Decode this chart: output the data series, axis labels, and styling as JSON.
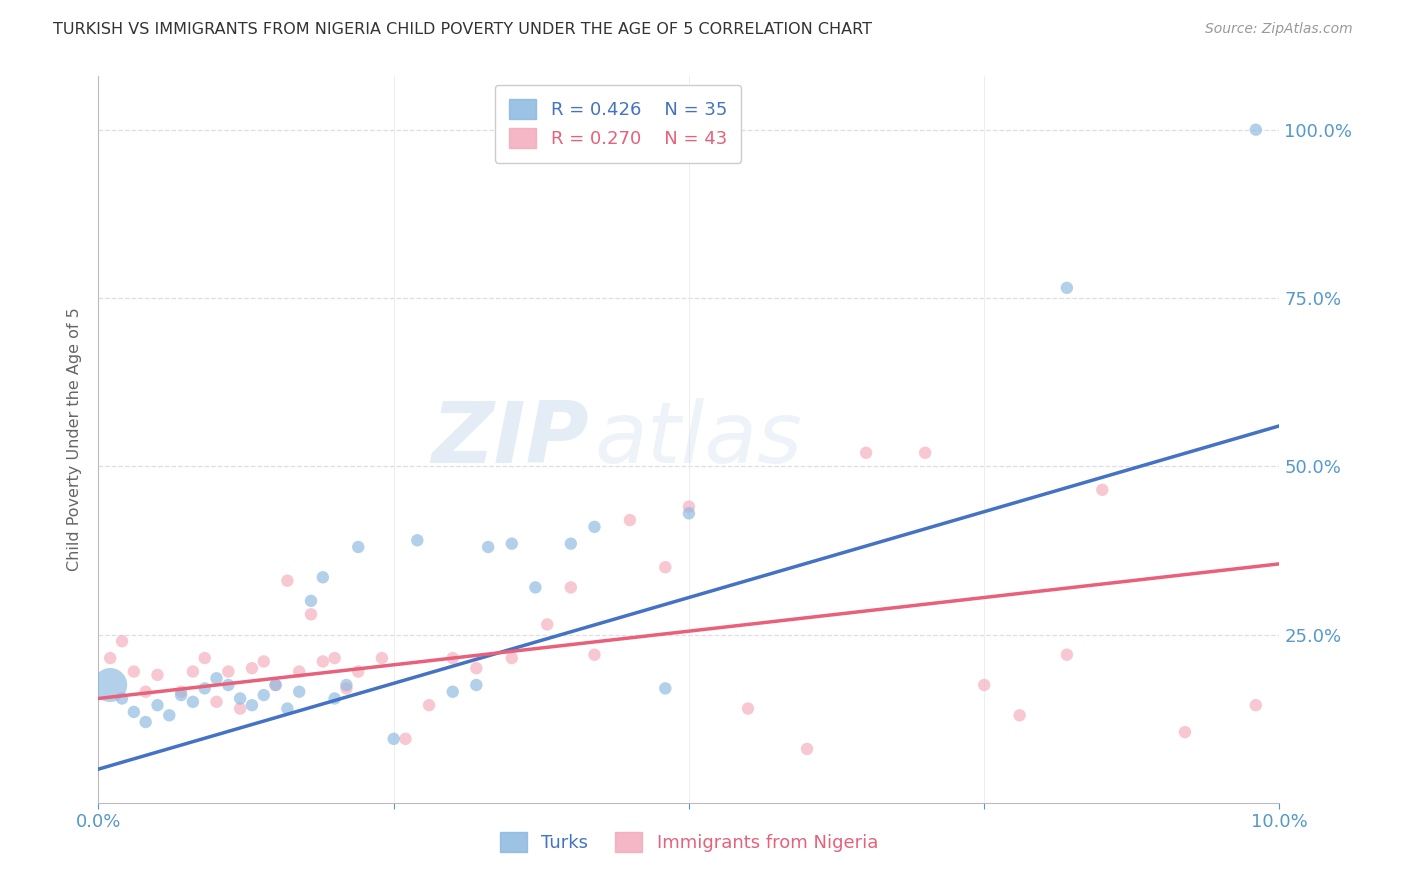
{
  "title": "TURKISH VS IMMIGRANTS FROM NIGERIA CHILD POVERTY UNDER THE AGE OF 5 CORRELATION CHART",
  "source": "Source: ZipAtlas.com",
  "ylabel": "Child Poverty Under the Age of 5",
  "legend_blue_r": "R = 0.426",
  "legend_blue_n": "N = 35",
  "legend_pink_r": "R = 0.270",
  "legend_pink_n": "N = 43",
  "blue_color": "#8BB8E0",
  "pink_color": "#F4AABB",
  "blue_line_color": "#4472C4",
  "pink_line_color": "#E8607A",
  "watermark_zip": "ZIP",
  "watermark_atlas": "atlas",
  "turks_x": [
    0.001,
    0.002,
    0.003,
    0.004,
    0.005,
    0.006,
    0.007,
    0.008,
    0.009,
    0.01,
    0.011,
    0.012,
    0.013,
    0.014,
    0.015,
    0.016,
    0.017,
    0.018,
    0.019,
    0.02,
    0.021,
    0.022,
    0.025,
    0.027,
    0.03,
    0.032,
    0.033,
    0.035,
    0.037,
    0.04,
    0.042,
    0.048,
    0.05,
    0.082,
    0.098
  ],
  "turks_y": [
    0.175,
    0.155,
    0.135,
    0.12,
    0.145,
    0.13,
    0.16,
    0.15,
    0.17,
    0.185,
    0.175,
    0.155,
    0.145,
    0.16,
    0.175,
    0.14,
    0.165,
    0.3,
    0.335,
    0.155,
    0.175,
    0.38,
    0.095,
    0.39,
    0.165,
    0.175,
    0.38,
    0.385,
    0.32,
    0.385,
    0.41,
    0.17,
    0.43,
    0.765,
    1.0
  ],
  "turks_sizes": [
    600,
    80,
    80,
    80,
    80,
    80,
    80,
    80,
    80,
    80,
    80,
    80,
    80,
    80,
    80,
    80,
    80,
    80,
    80,
    80,
    80,
    80,
    80,
    80,
    80,
    80,
    80,
    80,
    80,
    80,
    80,
    80,
    80,
    80,
    80
  ],
  "nigeria_x": [
    0.001,
    0.002,
    0.003,
    0.004,
    0.005,
    0.007,
    0.008,
    0.009,
    0.01,
    0.011,
    0.012,
    0.013,
    0.014,
    0.015,
    0.016,
    0.017,
    0.018,
    0.019,
    0.02,
    0.021,
    0.022,
    0.024,
    0.026,
    0.028,
    0.03,
    0.032,
    0.035,
    0.038,
    0.04,
    0.042,
    0.045,
    0.048,
    0.05,
    0.055,
    0.06,
    0.065,
    0.07,
    0.075,
    0.078,
    0.082,
    0.085,
    0.092,
    0.098
  ],
  "nigeria_y": [
    0.215,
    0.24,
    0.195,
    0.165,
    0.19,
    0.165,
    0.195,
    0.215,
    0.15,
    0.195,
    0.14,
    0.2,
    0.21,
    0.175,
    0.33,
    0.195,
    0.28,
    0.21,
    0.215,
    0.17,
    0.195,
    0.215,
    0.095,
    0.145,
    0.215,
    0.2,
    0.215,
    0.265,
    0.32,
    0.22,
    0.42,
    0.35,
    0.44,
    0.14,
    0.08,
    0.52,
    0.52,
    0.175,
    0.13,
    0.22,
    0.465,
    0.105,
    0.145
  ],
  "nigeria_sizes": [
    80,
    80,
    80,
    80,
    80,
    80,
    80,
    80,
    80,
    80,
    80,
    80,
    80,
    80,
    80,
    80,
    80,
    80,
    80,
    80,
    80,
    80,
    80,
    80,
    80,
    80,
    80,
    80,
    80,
    80,
    80,
    80,
    80,
    80,
    80,
    80,
    80,
    80,
    80,
    80,
    80,
    80,
    80
  ],
  "xlim": [
    0.0,
    0.1
  ],
  "ylim": [
    0.0,
    1.08
  ],
  "blue_line_x": [
    0.0,
    0.1
  ],
  "blue_line_y": [
    0.05,
    0.56
  ],
  "pink_line_x": [
    0.0,
    0.1
  ],
  "pink_line_y": [
    0.155,
    0.355
  ],
  "grid_color": "#DEDEE8",
  "background_color": "#FFFFFF",
  "axis_color": "#5599CC",
  "yticks_right": [
    0.25,
    0.5,
    0.75,
    1.0
  ],
  "ytick_labels_right": [
    "25.0%",
    "50.0%",
    "75.0%",
    "100.0%"
  ],
  "xtick_positions": [
    0.0,
    0.025,
    0.05,
    0.075,
    0.1
  ],
  "xtick_labels": [
    "0.0%",
    "",
    "",
    "",
    "10.0%"
  ]
}
